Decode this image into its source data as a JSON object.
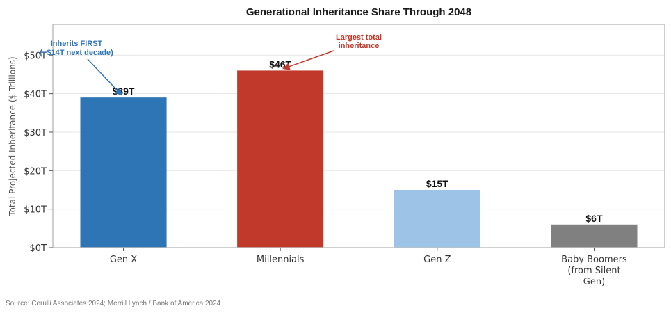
{
  "chart_data": {
    "type": "bar",
    "title": "Generational Inheritance Share Through 2048",
    "xlabel": "",
    "ylabel": "Total Projected Inheritance ($ Trillions)",
    "ylim": [
      0,
      58
    ],
    "yticks": [
      0,
      10,
      20,
      30,
      40,
      50
    ],
    "ytick_labels": [
      "$0T",
      "$10T",
      "$20T",
      "$30T",
      "$40T",
      "$50T"
    ],
    "grid": "horizontal",
    "categories": [
      [
        "Gen X"
      ],
      [
        "Millennials"
      ],
      [
        "Gen Z"
      ],
      [
        "Baby Boomers",
        "(from Silent",
        "Gen)"
      ]
    ],
    "values": [
      39,
      46,
      15,
      6
    ],
    "data_labels": [
      "$39T",
      "$46T",
      "$15T",
      "$6T"
    ],
    "colors": [
      "#2e75b6",
      "#c0392b",
      "#9dc3e6",
      "#808080"
    ],
    "annotations": [
      {
        "lines": [
          "Inherits FIRST",
          "(~$14T next decade)"
        ],
        "target_category": 0,
        "target_value": 39,
        "color": "#2e75b6"
      },
      {
        "lines": [
          "Largest total",
          "inheritance"
        ],
        "target_category": 1,
        "target_value": 46,
        "color": "#c0392b"
      }
    ]
  },
  "source": "Source: Cerulli Associates 2024; Merrill Lynch / Bank of America 2024"
}
